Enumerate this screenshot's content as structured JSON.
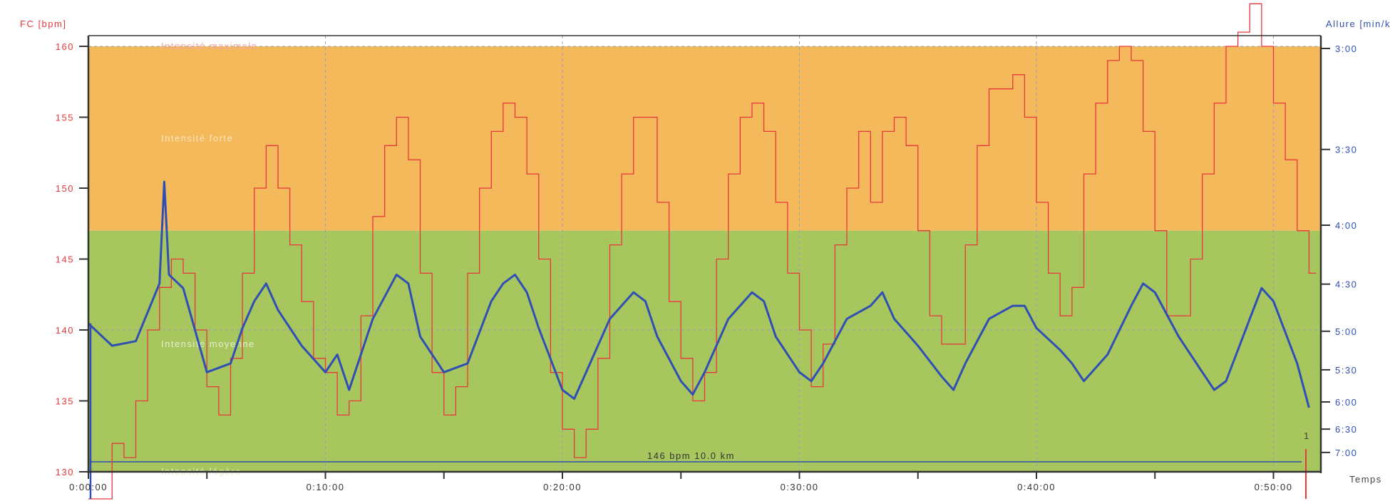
{
  "chart_data": {
    "type": "line",
    "title": "",
    "xlabel": "Temps",
    "ylabel_left": "FC [bpm]",
    "ylabel_right": "Allure [min/km]",
    "x_unit": "minutes",
    "xlim": [
      0,
      52
    ],
    "ylim_left": [
      130,
      160.75
    ],
    "ylim_right_speed_kmh": [
      8.02,
      20.36
    ],
    "x_ticks": [
      {
        "t": 0,
        "label": "0:00:00"
      },
      {
        "t": 10,
        "label": "0:10:00"
      },
      {
        "t": 20,
        "label": "0:20:00"
      },
      {
        "t": 30,
        "label": "0:30:00"
      },
      {
        "t": 40,
        "label": "0:40:00"
      },
      {
        "t": 50,
        "label": "0:50:00"
      }
    ],
    "x_minor_ticks": [
      5,
      15,
      25,
      35,
      45
    ],
    "left_ticks": [
      130,
      135,
      140,
      145,
      150,
      155,
      160
    ],
    "right_ticks": [
      {
        "label": "3:00",
        "speed": 20.0
      },
      {
        "label": "3:30",
        "speed": 17.143
      },
      {
        "label": "4:00",
        "speed": 15.0
      },
      {
        "label": "4:30",
        "speed": 13.333
      },
      {
        "label": "5:00",
        "speed": 12.0
      },
      {
        "label": "5:30",
        "speed": 10.909
      },
      {
        "label": "6:00",
        "speed": 10.0
      },
      {
        "label": "6:30",
        "speed": 9.231
      },
      {
        "label": "7:00",
        "speed": 8.571
      }
    ],
    "grid": true,
    "zones": [
      {
        "name": "Intensité maximale",
        "from": 160,
        "to": 160.75,
        "color": "#ffffff",
        "label_bpm": 160
      },
      {
        "name": "Intensité forte",
        "from": 147,
        "to": 160,
        "color": "#f4b95a",
        "label_bpm": 153.5
      },
      {
        "name": "Intensité moyenne",
        "from": 130,
        "to": 147,
        "color": "#a8c65e",
        "label_bpm": 139
      },
      {
        "name": "Intensité légère",
        "from": 130,
        "to": 130,
        "color": "#a8c65e",
        "label_bpm": 130
      }
    ],
    "series": [
      {
        "name": "FC",
        "unit": "bpm",
        "color": "#e8383d",
        "step_min": 0.5,
        "values": [
          125,
          128,
          132,
          131,
          135,
          140,
          143,
          145,
          144,
          140,
          136,
          134,
          138,
          144,
          150,
          153,
          150,
          146,
          142,
          138,
          137,
          134,
          135,
          141,
          148,
          153,
          155,
          152,
          144,
          137,
          134,
          136,
          144,
          150,
          154,
          156,
          155,
          151,
          145,
          137,
          133,
          131,
          133,
          138,
          146,
          151,
          155,
          155,
          149,
          142,
          138,
          135,
          137,
          145,
          151,
          155,
          156,
          154,
          149,
          144,
          140,
          136,
          139,
          146,
          150,
          154,
          149,
          154,
          155,
          153,
          147,
          141,
          139,
          139,
          146,
          153,
          157,
          157,
          158,
          155,
          149,
          144,
          141,
          143,
          151,
          156,
          159,
          160,
          159,
          154,
          147,
          141,
          141,
          145,
          151,
          156,
          160,
          161,
          163,
          160,
          156,
          152,
          147,
          144
        ]
      },
      {
        "name": "Allure",
        "unit": "km/h",
        "color": "#2f4fb5",
        "points": [
          [
            0,
            12.22
          ],
          [
            1,
            11.59
          ],
          [
            2,
            11.72
          ],
          [
            3,
            13.35
          ],
          [
            3.2,
            16.23
          ],
          [
            3.4,
            13.6
          ],
          [
            4,
            13.22
          ],
          [
            5,
            10.84
          ],
          [
            6,
            11.09
          ],
          [
            6.5,
            12.09
          ],
          [
            7,
            12.85
          ],
          [
            7.5,
            13.35
          ],
          [
            8,
            12.6
          ],
          [
            9,
            11.59
          ],
          [
            10,
            10.84
          ],
          [
            10.5,
            11.34
          ],
          [
            11,
            10.34
          ],
          [
            12,
            12.35
          ],
          [
            13,
            13.6
          ],
          [
            13.5,
            13.35
          ],
          [
            14,
            11.85
          ],
          [
            15,
            10.84
          ],
          [
            16,
            11.09
          ],
          [
            17,
            12.85
          ],
          [
            17.5,
            13.35
          ],
          [
            18,
            13.6
          ],
          [
            18.5,
            13.1
          ],
          [
            19,
            12.09
          ],
          [
            20,
            10.34
          ],
          [
            20.5,
            10.09
          ],
          [
            21,
            10.84
          ],
          [
            22,
            12.35
          ],
          [
            23,
            13.1
          ],
          [
            23.5,
            12.85
          ],
          [
            24,
            11.85
          ],
          [
            25,
            10.59
          ],
          [
            25.5,
            10.21
          ],
          [
            26,
            10.84
          ],
          [
            27,
            12.35
          ],
          [
            28,
            13.1
          ],
          [
            28.5,
            12.85
          ],
          [
            29,
            11.85
          ],
          [
            30,
            10.84
          ],
          [
            30.5,
            10.59
          ],
          [
            31,
            11.09
          ],
          [
            32,
            12.35
          ],
          [
            33,
            12.72
          ],
          [
            33.5,
            13.1
          ],
          [
            34,
            12.35
          ],
          [
            35,
            11.59
          ],
          [
            36,
            10.72
          ],
          [
            36.5,
            10.34
          ],
          [
            37,
            11.09
          ],
          [
            38,
            12.35
          ],
          [
            39,
            12.72
          ],
          [
            39.5,
            12.72
          ],
          [
            40,
            12.09
          ],
          [
            41,
            11.47
          ],
          [
            41.5,
            11.09
          ],
          [
            42,
            10.59
          ],
          [
            43,
            11.34
          ],
          [
            44,
            12.72
          ],
          [
            44.5,
            13.35
          ],
          [
            45,
            13.1
          ],
          [
            46,
            11.85
          ],
          [
            47,
            10.84
          ],
          [
            47.5,
            10.34
          ],
          [
            48,
            10.59
          ],
          [
            49,
            12.35
          ],
          [
            49.5,
            13.22
          ],
          [
            50,
            12.85
          ],
          [
            51,
            11.09
          ],
          [
            51.5,
            9.84
          ]
        ]
      }
    ],
    "marker": {
      "label": "146 bpm  10.0 km",
      "lap": "1",
      "color": "#2f4fb5"
    }
  }
}
